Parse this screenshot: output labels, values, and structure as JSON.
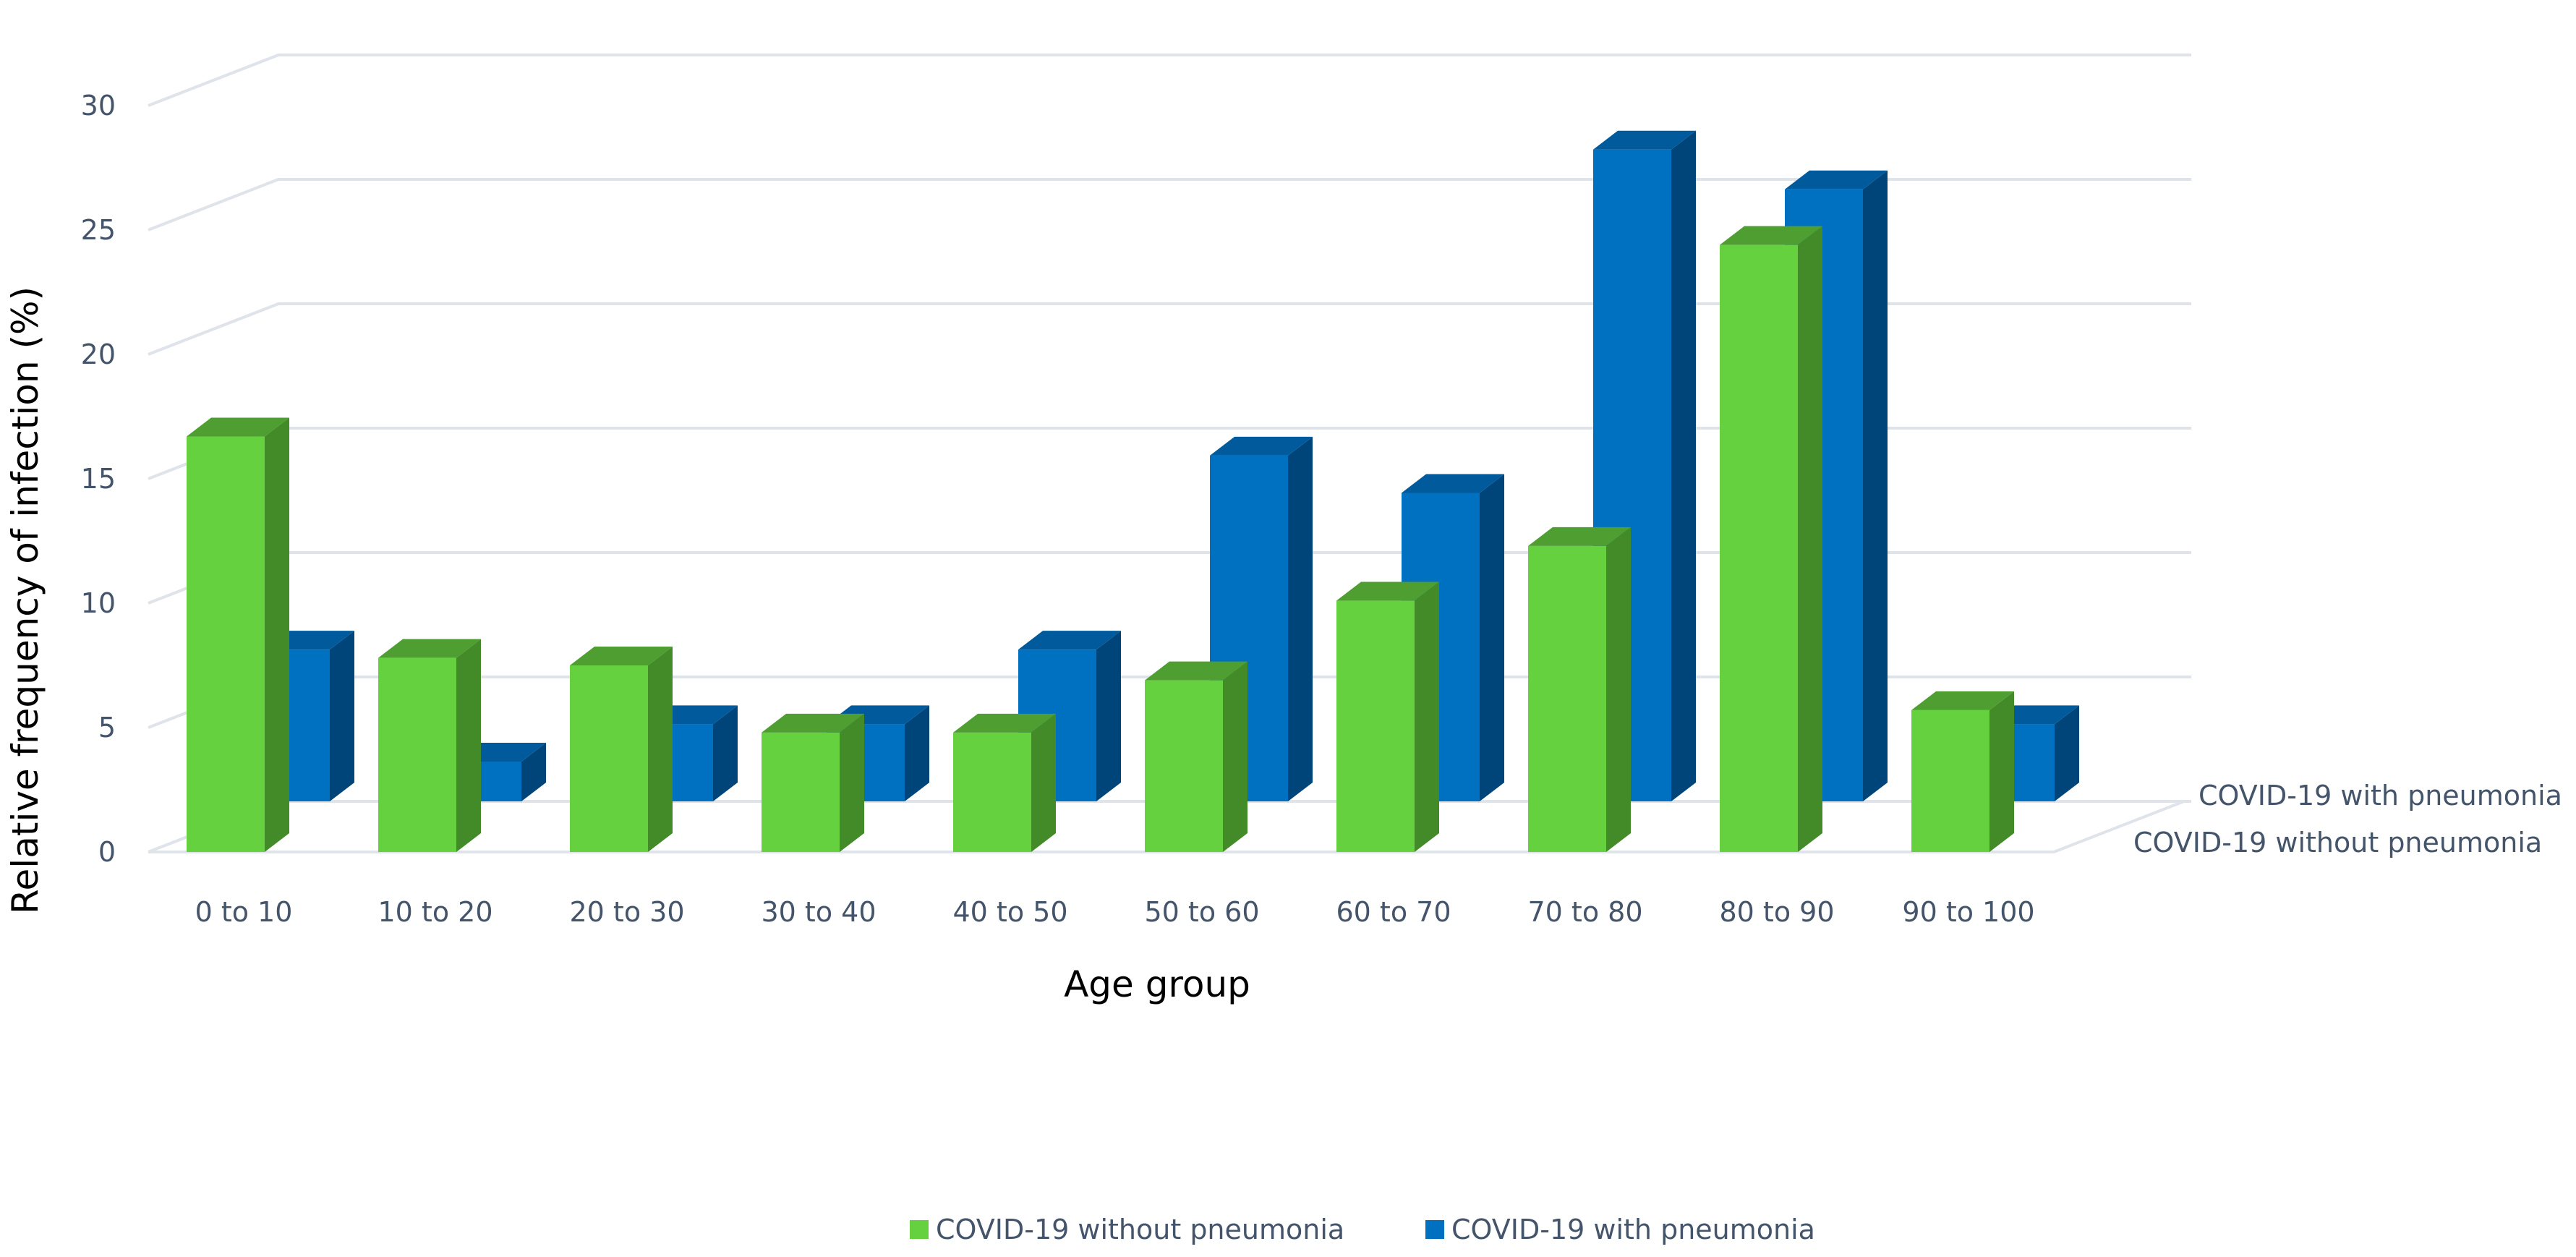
{
  "chart_data": {
    "type": "bar",
    "subtype": "3d-column",
    "title": "",
    "xlabel": "Age group",
    "ylabel": "Relative frequency of infection (%)",
    "ylim": [
      0,
      30
    ],
    "yticks": [
      0,
      5,
      10,
      15,
      20,
      25,
      30
    ],
    "grid": true,
    "legend_position": "bottom",
    "categories": [
      "0 to 10",
      "10 to 20",
      "20 to 30",
      "30 to 40",
      "40 to 50",
      "50 to 60",
      "60 to 70",
      "70 to 80",
      "80 to 90",
      "90 to 100"
    ],
    "series": [
      {
        "name": "COVID-19 without pneumonia",
        "color": "#66d13f",
        "values": [
          16.7,
          7.8,
          7.5,
          4.8,
          4.8,
          6.9,
          10.1,
          12.3,
          24.4,
          5.7
        ]
      },
      {
        "name": "COVID-19 with pneumonia",
        "color": "#0070c0",
        "values": [
          6.1,
          1.6,
          3.1,
          3.1,
          6.1,
          13.9,
          12.4,
          26.2,
          24.6,
          3.1
        ]
      }
    ]
  }
}
